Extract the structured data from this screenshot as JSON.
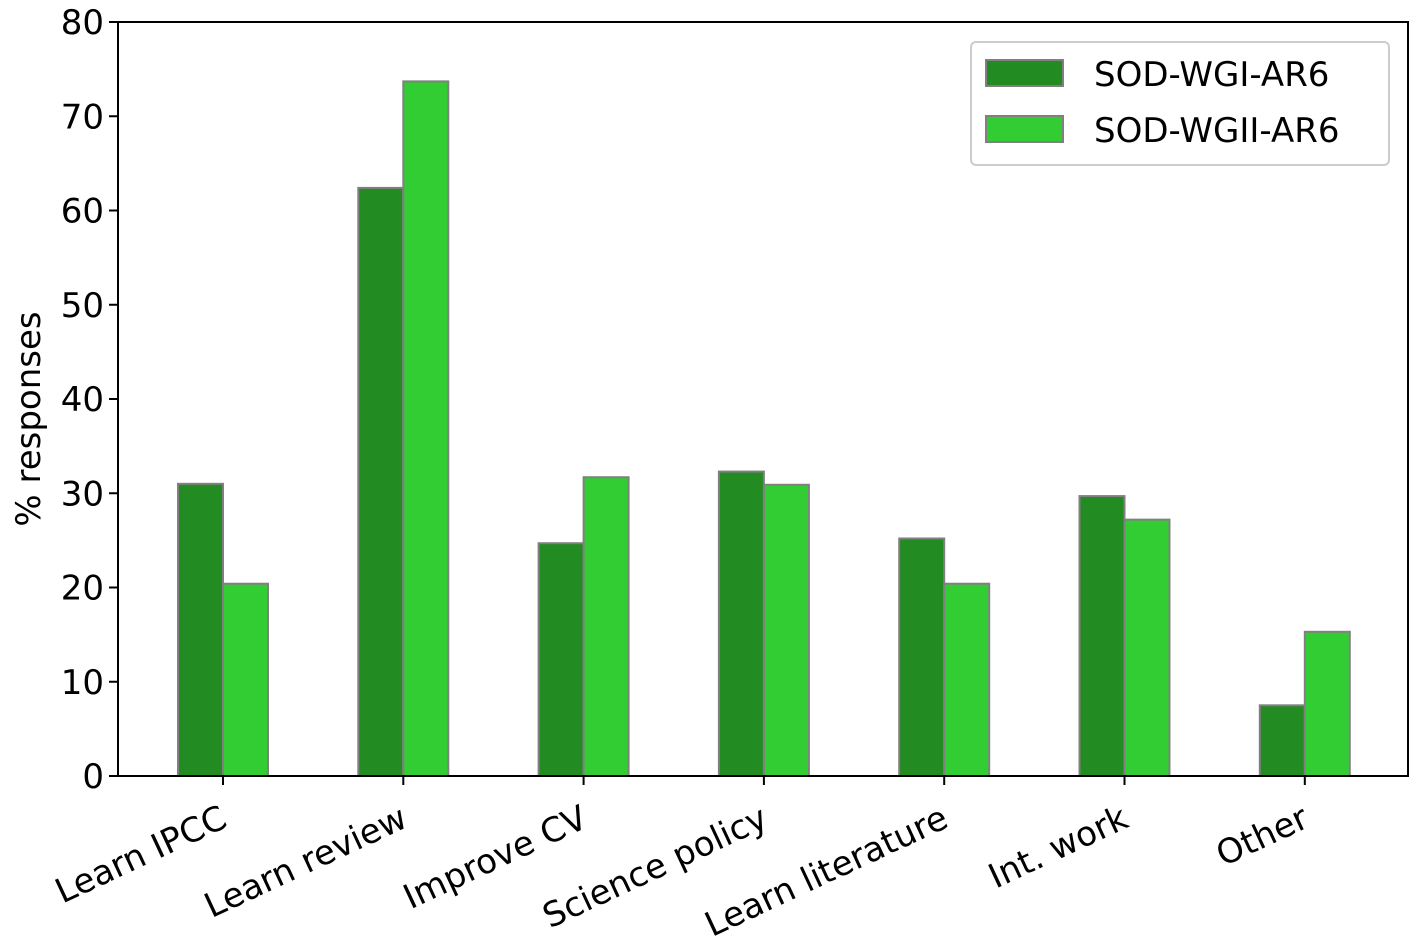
{
  "chart_data": {
    "type": "bar",
    "categories": [
      "Learn IPCC",
      "Learn review",
      "Improve CV",
      "Science policy",
      "Learn literature",
      "Int. work",
      "Other"
    ],
    "series": [
      {
        "name": "SOD-WGI-AR6",
        "color": "#228b22",
        "values": [
          31.0,
          62.4,
          24.7,
          32.3,
          25.2,
          29.7,
          7.5
        ]
      },
      {
        "name": "SOD-WGII-AR6",
        "color": "#32cd32",
        "values": [
          20.4,
          73.7,
          31.7,
          30.9,
          20.4,
          27.2,
          15.3
        ]
      }
    ],
    "title": "",
    "xlabel": "",
    "ylabel": "% responses",
    "ylim": [
      0,
      80
    ],
    "yticks": [
      0,
      10,
      20,
      30,
      40,
      50,
      60,
      70,
      80
    ],
    "grid": false,
    "legend_position": "top-right",
    "bar_edge_color": "#808080"
  }
}
